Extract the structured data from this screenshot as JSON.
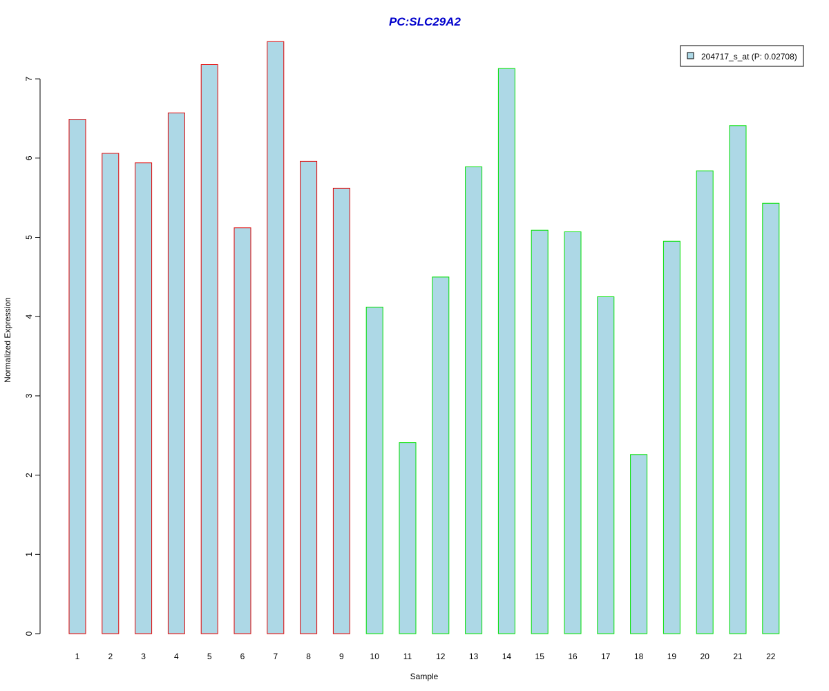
{
  "chart_data": {
    "type": "bar",
    "title": "PC:SLC29A2",
    "xlabel": "Sample",
    "ylabel": "Normalized Expression",
    "categories": [
      "1",
      "2",
      "3",
      "4",
      "5",
      "6",
      "7",
      "8",
      "9",
      "10",
      "11",
      "12",
      "13",
      "14",
      "15",
      "16",
      "17",
      "18",
      "19",
      "20",
      "21",
      "22"
    ],
    "series": [
      {
        "name": "204717_s_at (P: 0.02708)",
        "values": [
          6.49,
          6.06,
          5.94,
          6.57,
          7.18,
          5.12,
          7.47,
          5.96,
          5.62,
          4.12,
          2.41,
          4.5,
          5.89,
          7.13,
          5.09,
          5.07,
          4.25,
          2.26,
          4.95,
          5.84,
          6.41,
          5.43
        ]
      }
    ],
    "group_border_colors": [
      "#e00000",
      "#e00000",
      "#e00000",
      "#e00000",
      "#e00000",
      "#e00000",
      "#e00000",
      "#e00000",
      "#e00000",
      "#00e000",
      "#00e000",
      "#00e000",
      "#00e000",
      "#00e000",
      "#00e000",
      "#00e000",
      "#00e000",
      "#00e000",
      "#00e000",
      "#00e000",
      "#00e000",
      "#00e000"
    ],
    "bar_fill_color": "#add8e6",
    "title_color": "#0000cc",
    "y_ticks": [
      0,
      1,
      2,
      3,
      4,
      5,
      6,
      7
    ],
    "ylim": [
      0,
      7.5
    ],
    "grid": false,
    "legend_position": "top-right"
  }
}
